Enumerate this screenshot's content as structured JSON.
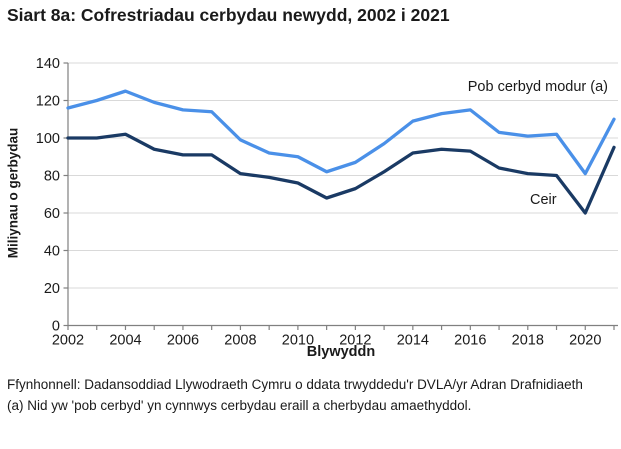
{
  "title": "Siart 8a: Cofrestriadau cerbydau newydd, 2002 i 2021",
  "chart_data": {
    "type": "line",
    "x": [
      2002,
      2003,
      2004,
      2005,
      2006,
      2007,
      2008,
      2009,
      2010,
      2011,
      2012,
      2013,
      2014,
      2015,
      2016,
      2017,
      2018,
      2019,
      2020,
      2021
    ],
    "series": [
      {
        "name": "Pob cerbyd modur (a)",
        "color": "#4a90e8",
        "values": [
          116,
          120,
          125,
          119,
          115,
          114,
          99,
          92,
          90,
          82,
          87,
          97,
          109,
          113,
          115,
          103,
          101,
          102,
          81,
          110
        ]
      },
      {
        "name": "Ceir",
        "color": "#1a3a64",
        "values": [
          100,
          100,
          102,
          94,
          91,
          91,
          81,
          79,
          76,
          68,
          73,
          82,
          92,
          94,
          93,
          84,
          81,
          80,
          60,
          95
        ]
      }
    ],
    "title": "Siart 8a: Cofrestriadau cerbydau newydd, 2002 i 2021",
    "xlabel": "Blywyddn",
    "ylabel": "Miliynau o gerbydau",
    "ylim": [
      0,
      140
    ],
    "ytick_step": 20,
    "xtick_labels": [
      "2002",
      "2004",
      "2006",
      "2008",
      "2010",
      "2012",
      "2014",
      "2016",
      "2018",
      "2020"
    ],
    "grid": "horizontal-only",
    "legend": "direct-labels-on-chart",
    "colors": {
      "gridline": "#d9d9d9",
      "axis": "#808080",
      "tick_text": "#1a1a1a"
    }
  },
  "footer": {
    "source": "Ffynhonnell: Dadansoddiad Llywodraeth Cymru o ddata trwyddedu'r DVLA/yr Adran Drafnidiaeth",
    "note": "(a) Nid yw 'pob cerbyd' yn cynnwys cerbydau eraill a cherbydau amaethyddol."
  }
}
